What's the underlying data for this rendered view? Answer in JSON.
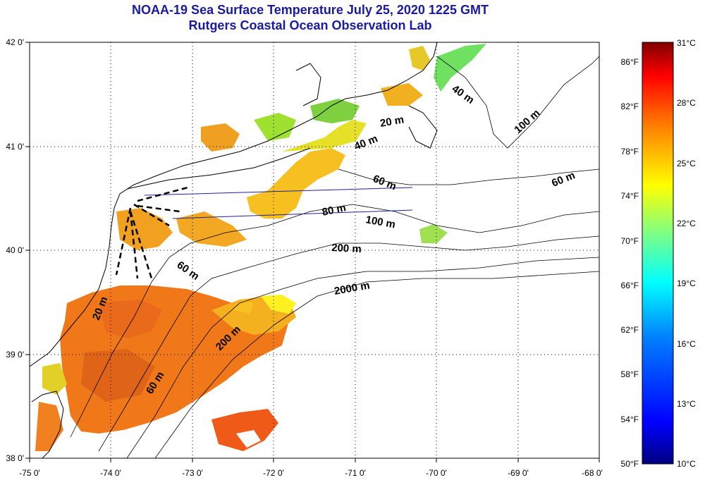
{
  "title": {
    "line1": "NOAA-19 Sea Surface Temperature July 25, 2020 1225 GMT",
    "line2": "Rutgers Coastal Ocean Observation Lab"
  },
  "map": {
    "lon_ticks": [
      "-75 0'",
      "-74 0'",
      "-73 0'",
      "-72 0'",
      "-71 0'",
      "-70 0'",
      "-69 0'",
      "-68 0'"
    ],
    "lat_ticks": [
      "42 0'",
      "41 0'",
      "40 0'",
      "39 0'",
      "38 0'"
    ],
    "depth_labels": [
      "20 m",
      "40 m",
      "60 m",
      "80 m",
      "100 m",
      "200 m",
      "2000 m",
      "20 m",
      "60 m",
      "200 m",
      "60 m",
      "40 m",
      "100 m",
      "60 m"
    ]
  },
  "colorbar": {
    "celsius_labels": [
      "31°C",
      "28°C",
      "25°C",
      "22°C",
      "19°C",
      "16°C",
      "13°C",
      "10°C"
    ],
    "fahrenheit_labels": [
      "86°F",
      "82°F",
      "78°F",
      "74°F",
      "70°F",
      "66°F",
      "62°F",
      "58°F",
      "54°F",
      "50°F"
    ],
    "colors": [
      "#800000",
      "#ff0000",
      "#ff8000",
      "#ffff00",
      "#80ff80",
      "#00ffff",
      "#0080ff",
      "#0000ff",
      "#000080"
    ]
  }
}
